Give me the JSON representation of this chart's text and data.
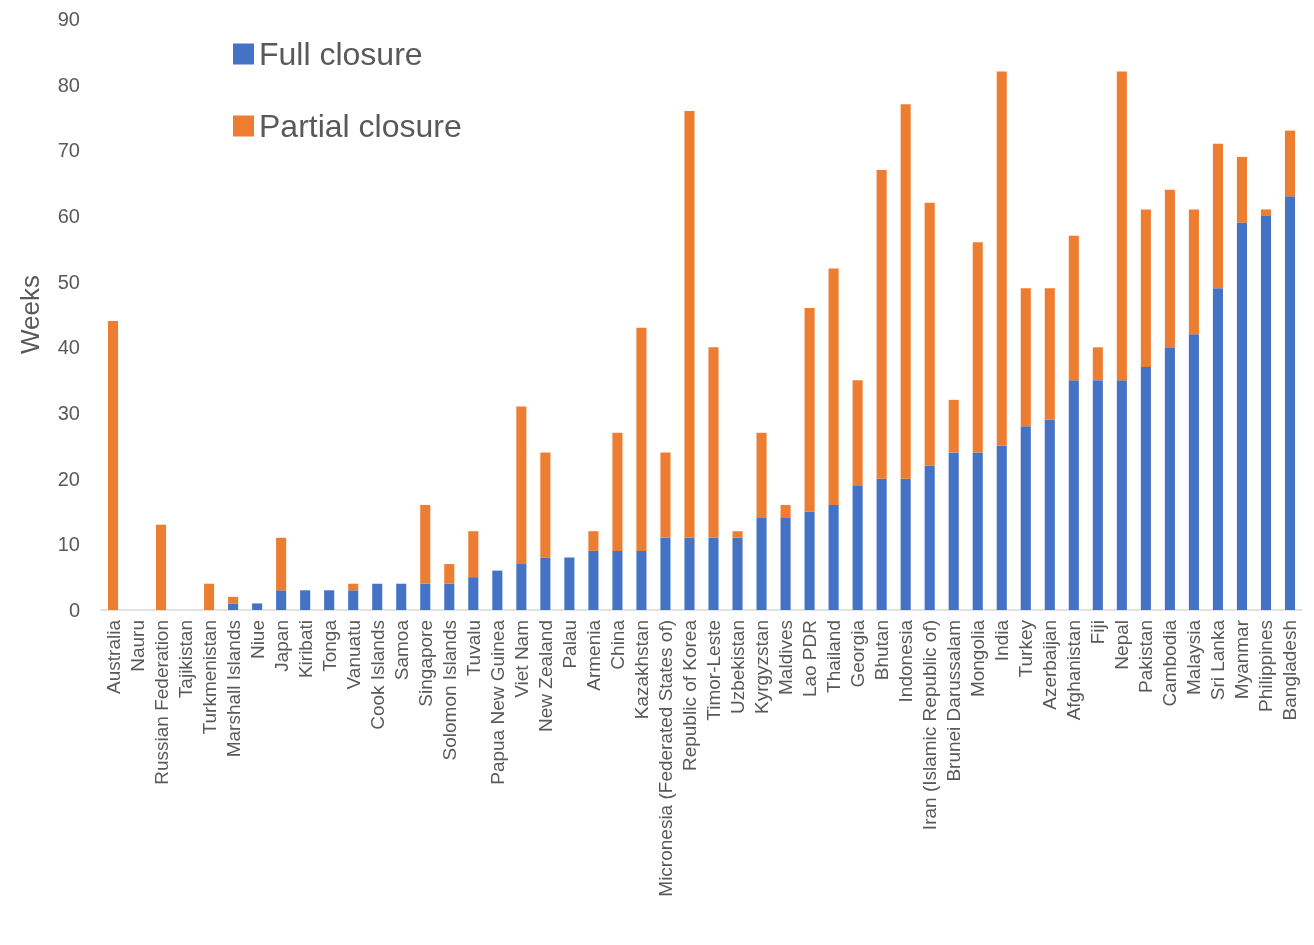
{
  "chart_data": {
    "type": "bar",
    "ylabel": "Weeks",
    "categories": [
      "Australia",
      "Nauru",
      "Russian Federation",
      "Tajikistan",
      "Turkmenistan",
      "Marshall Islands",
      "Niue",
      "Japan",
      "Kiribati",
      "Tonga",
      "Vanuatu",
      "Cook Islands",
      "Samoa",
      "Singapore",
      "Solomon Islands",
      "Tuvalu",
      "Papua New Guinea",
      "Viet Nam",
      "New Zealand",
      "Palau",
      "Armenia",
      "China",
      "Kazakhstan",
      "Micronesia (Federated States of)",
      "Republic of Korea",
      "Timor-Leste",
      "Uzbekistan",
      "Kyrgyzstan",
      "Maldives",
      "Lao PDR",
      "Thailand",
      "Georgia",
      "Bhutan",
      "Indonesia",
      "Iran (Islamic Republic of)",
      "Brunei Darussalam",
      "Mongolia",
      "India",
      "Turkey",
      "Azerbaijan",
      "Afghanistan",
      "Fiji",
      "Nepal",
      "Pakistan",
      "Cambodia",
      "Malaysia",
      "Sri Lanka",
      "Myanmar",
      "Philippines",
      "Bangladesh"
    ],
    "series": [
      {
        "name": "Full closure",
        "color": "#4472c4",
        "values": [
          0,
          0,
          0,
          0,
          0,
          1,
          1,
          3,
          3,
          3,
          3,
          4,
          4,
          4,
          4,
          5,
          6,
          7,
          8,
          8,
          9,
          9,
          9,
          11,
          11,
          11,
          11,
          14,
          14,
          15,
          16,
          19,
          20,
          20,
          22,
          24,
          24,
          25,
          28,
          29,
          35,
          35,
          35,
          37,
          40,
          42,
          49,
          59,
          60,
          63
        ]
      },
      {
        "name": "Partial closure",
        "color": "#ed7d31",
        "values": [
          44,
          0,
          13,
          0,
          4,
          1,
          0,
          8,
          0,
          0,
          1,
          0,
          0,
          12,
          3,
          7,
          0,
          24,
          16,
          0,
          3,
          18,
          34,
          13,
          65,
          29,
          1,
          13,
          2,
          31,
          36,
          16,
          47,
          57,
          40,
          8,
          32,
          57,
          21,
          20,
          22,
          5,
          47,
          24,
          24,
          19,
          22,
          10,
          1,
          10
        ]
      }
    ],
    "stacked": true,
    "ylim": [
      0,
      90
    ],
    "yticks": [
      0,
      10,
      20,
      30,
      40,
      50,
      60,
      70,
      80,
      90
    ],
    "grid": false,
    "legend": "top left"
  }
}
